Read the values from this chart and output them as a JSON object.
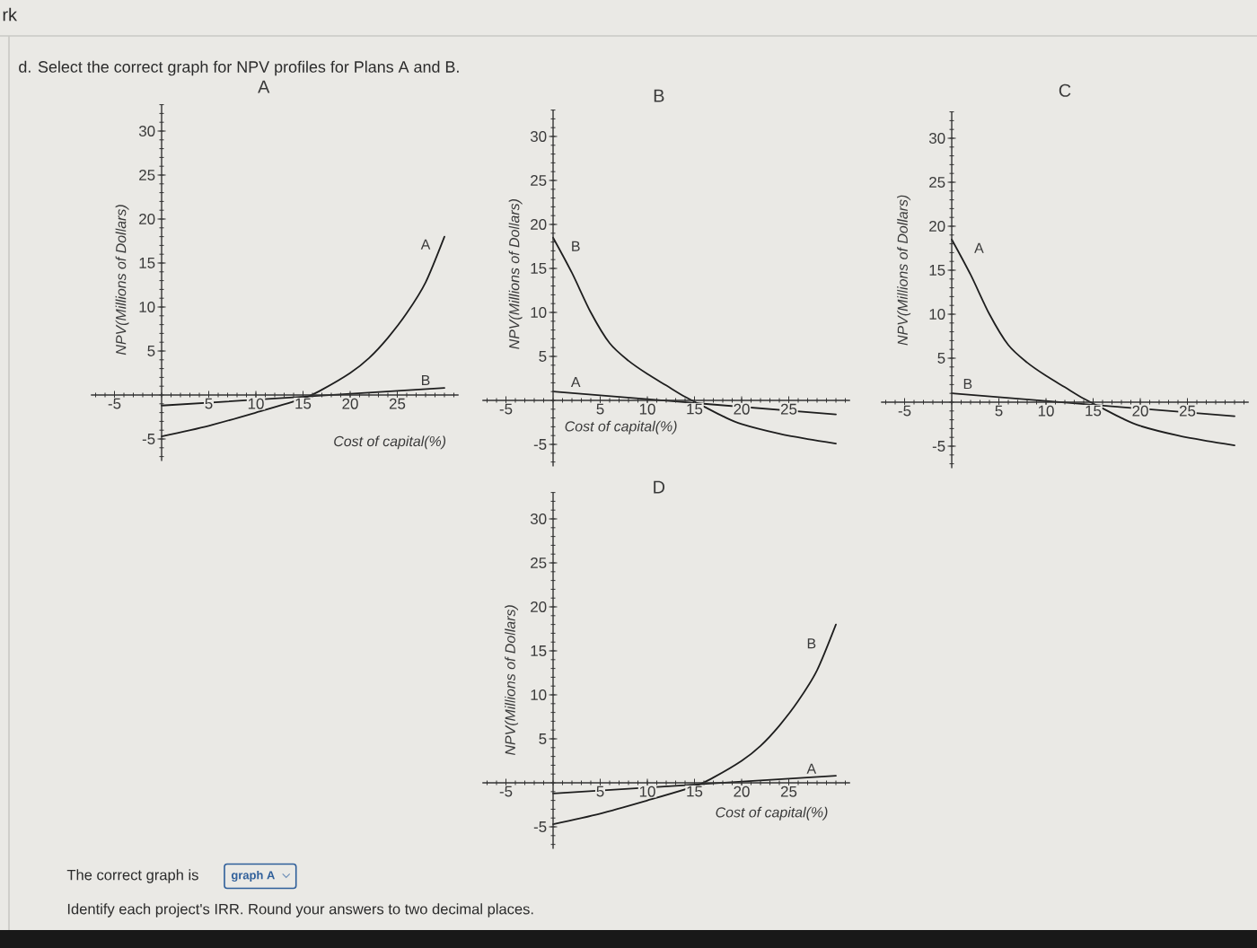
{
  "chart_data": [
    {
      "type": "other",
      "title": "d. Select the correct graph for NPV profiles for Plans A and B.",
      "annotations": [
        "rk",
        "The correct graph is",
        "graph A",
        "Identify each project's IRR. Round your answers to two decimal places."
      ]
    },
    {
      "type": "line",
      "title": "A",
      "xlabel": "Cost of capital(%)",
      "ylabel": "NPV(Millions of Dollars)",
      "xlim": [
        -7.5,
        31.5
      ],
      "ylim": [
        -7.5,
        33
      ],
      "xticks": [
        -5,
        5,
        10,
        15,
        20,
        25
      ],
      "yticks": [
        -5,
        5,
        10,
        15,
        20,
        25,
        30
      ],
      "series": [
        {
          "name": "A",
          "color": "#1e1e1e",
          "x": [
            0,
            5,
            10,
            15,
            17,
            20,
            22,
            24,
            26,
            28,
            30
          ],
          "values": [
            -4.7,
            -3.5,
            -2,
            -0.4,
            0.6,
            2.5,
            4.2,
            6.5,
            9.3,
            12.8,
            18
          ]
        },
        {
          "name": "B",
          "color": "#1e1e1e",
          "x": [
            0,
            30
          ],
          "values": [
            -1.2,
            0.8
          ]
        }
      ]
    },
    {
      "type": "line",
      "title": "B",
      "xlabel": "Cost of capital(%)",
      "ylabel": "NPV(Millions of Dollars)",
      "xlim": [
        -7.5,
        31.5
      ],
      "ylim": [
        -7.5,
        33
      ],
      "xticks": [
        -5,
        5,
        10,
        15,
        20,
        25
      ],
      "yticks": [
        -5,
        5,
        10,
        15,
        20,
        25,
        30
      ],
      "series": [
        {
          "name": "A",
          "color": "#1e1e1e",
          "x": [
            0,
            30
          ],
          "values": [
            1,
            -1.6
          ]
        },
        {
          "name": "B",
          "color": "#1e1e1e",
          "x": [
            0,
            2,
            4,
            6,
            8,
            10,
            12,
            14,
            16,
            18,
            20,
            24,
            27,
            30
          ],
          "values": [
            18.5,
            14.5,
            10,
            6.5,
            4.5,
            3,
            1.7,
            0.4,
            -0.7,
            -1.8,
            -2.7,
            -3.8,
            -4.4,
            -4.9
          ]
        }
      ]
    },
    {
      "type": "line",
      "title": "C",
      "ylabel": "NPV(Millions of Dollars)",
      "xlim": [
        -7.5,
        31.5
      ],
      "ylim": [
        -7.5,
        33
      ],
      "xticks": [
        -5,
        5,
        10,
        15,
        20,
        25
      ],
      "yticks": [
        -5,
        5,
        10,
        15,
        20,
        25,
        30
      ],
      "series": [
        {
          "name": "A",
          "color": "#1e1e1e",
          "x": [
            0,
            2,
            4,
            6,
            8,
            10,
            12,
            14,
            16,
            18,
            20,
            24,
            27,
            30
          ],
          "values": [
            18.5,
            14.5,
            10,
            6.5,
            4.5,
            3,
            1.7,
            0.4,
            -0.7,
            -1.8,
            -2.7,
            -3.8,
            -4.4,
            -4.9
          ]
        },
        {
          "name": "B",
          "color": "#1e1e1e",
          "x": [
            0,
            30
          ],
          "values": [
            1,
            -1.6
          ]
        }
      ]
    },
    {
      "type": "line",
      "title": "D",
      "xlabel": "Cost of capital(%)",
      "ylabel": "NPV(Millions of Dollars)",
      "xlim": [
        -7.5,
        31.5
      ],
      "ylim": [
        -7.5,
        33
      ],
      "xticks": [
        -5,
        5,
        10,
        15,
        20,
        25
      ],
      "yticks": [
        -5,
        5,
        10,
        15,
        20,
        25,
        30
      ],
      "series": [
        {
          "name": "A",
          "color": "#1e1e1e",
          "x": [
            0,
            30
          ],
          "values": [
            -1.2,
            0.8
          ]
        },
        {
          "name": "B",
          "color": "#1e1e1e",
          "x": [
            0,
            5,
            10,
            15,
            17,
            20,
            22,
            24,
            26,
            28,
            30
          ],
          "values": [
            -4.7,
            -3.5,
            -2,
            -0.4,
            0.6,
            2.5,
            4.2,
            6.5,
            9.3,
            12.8,
            18
          ]
        }
      ]
    }
  ]
}
